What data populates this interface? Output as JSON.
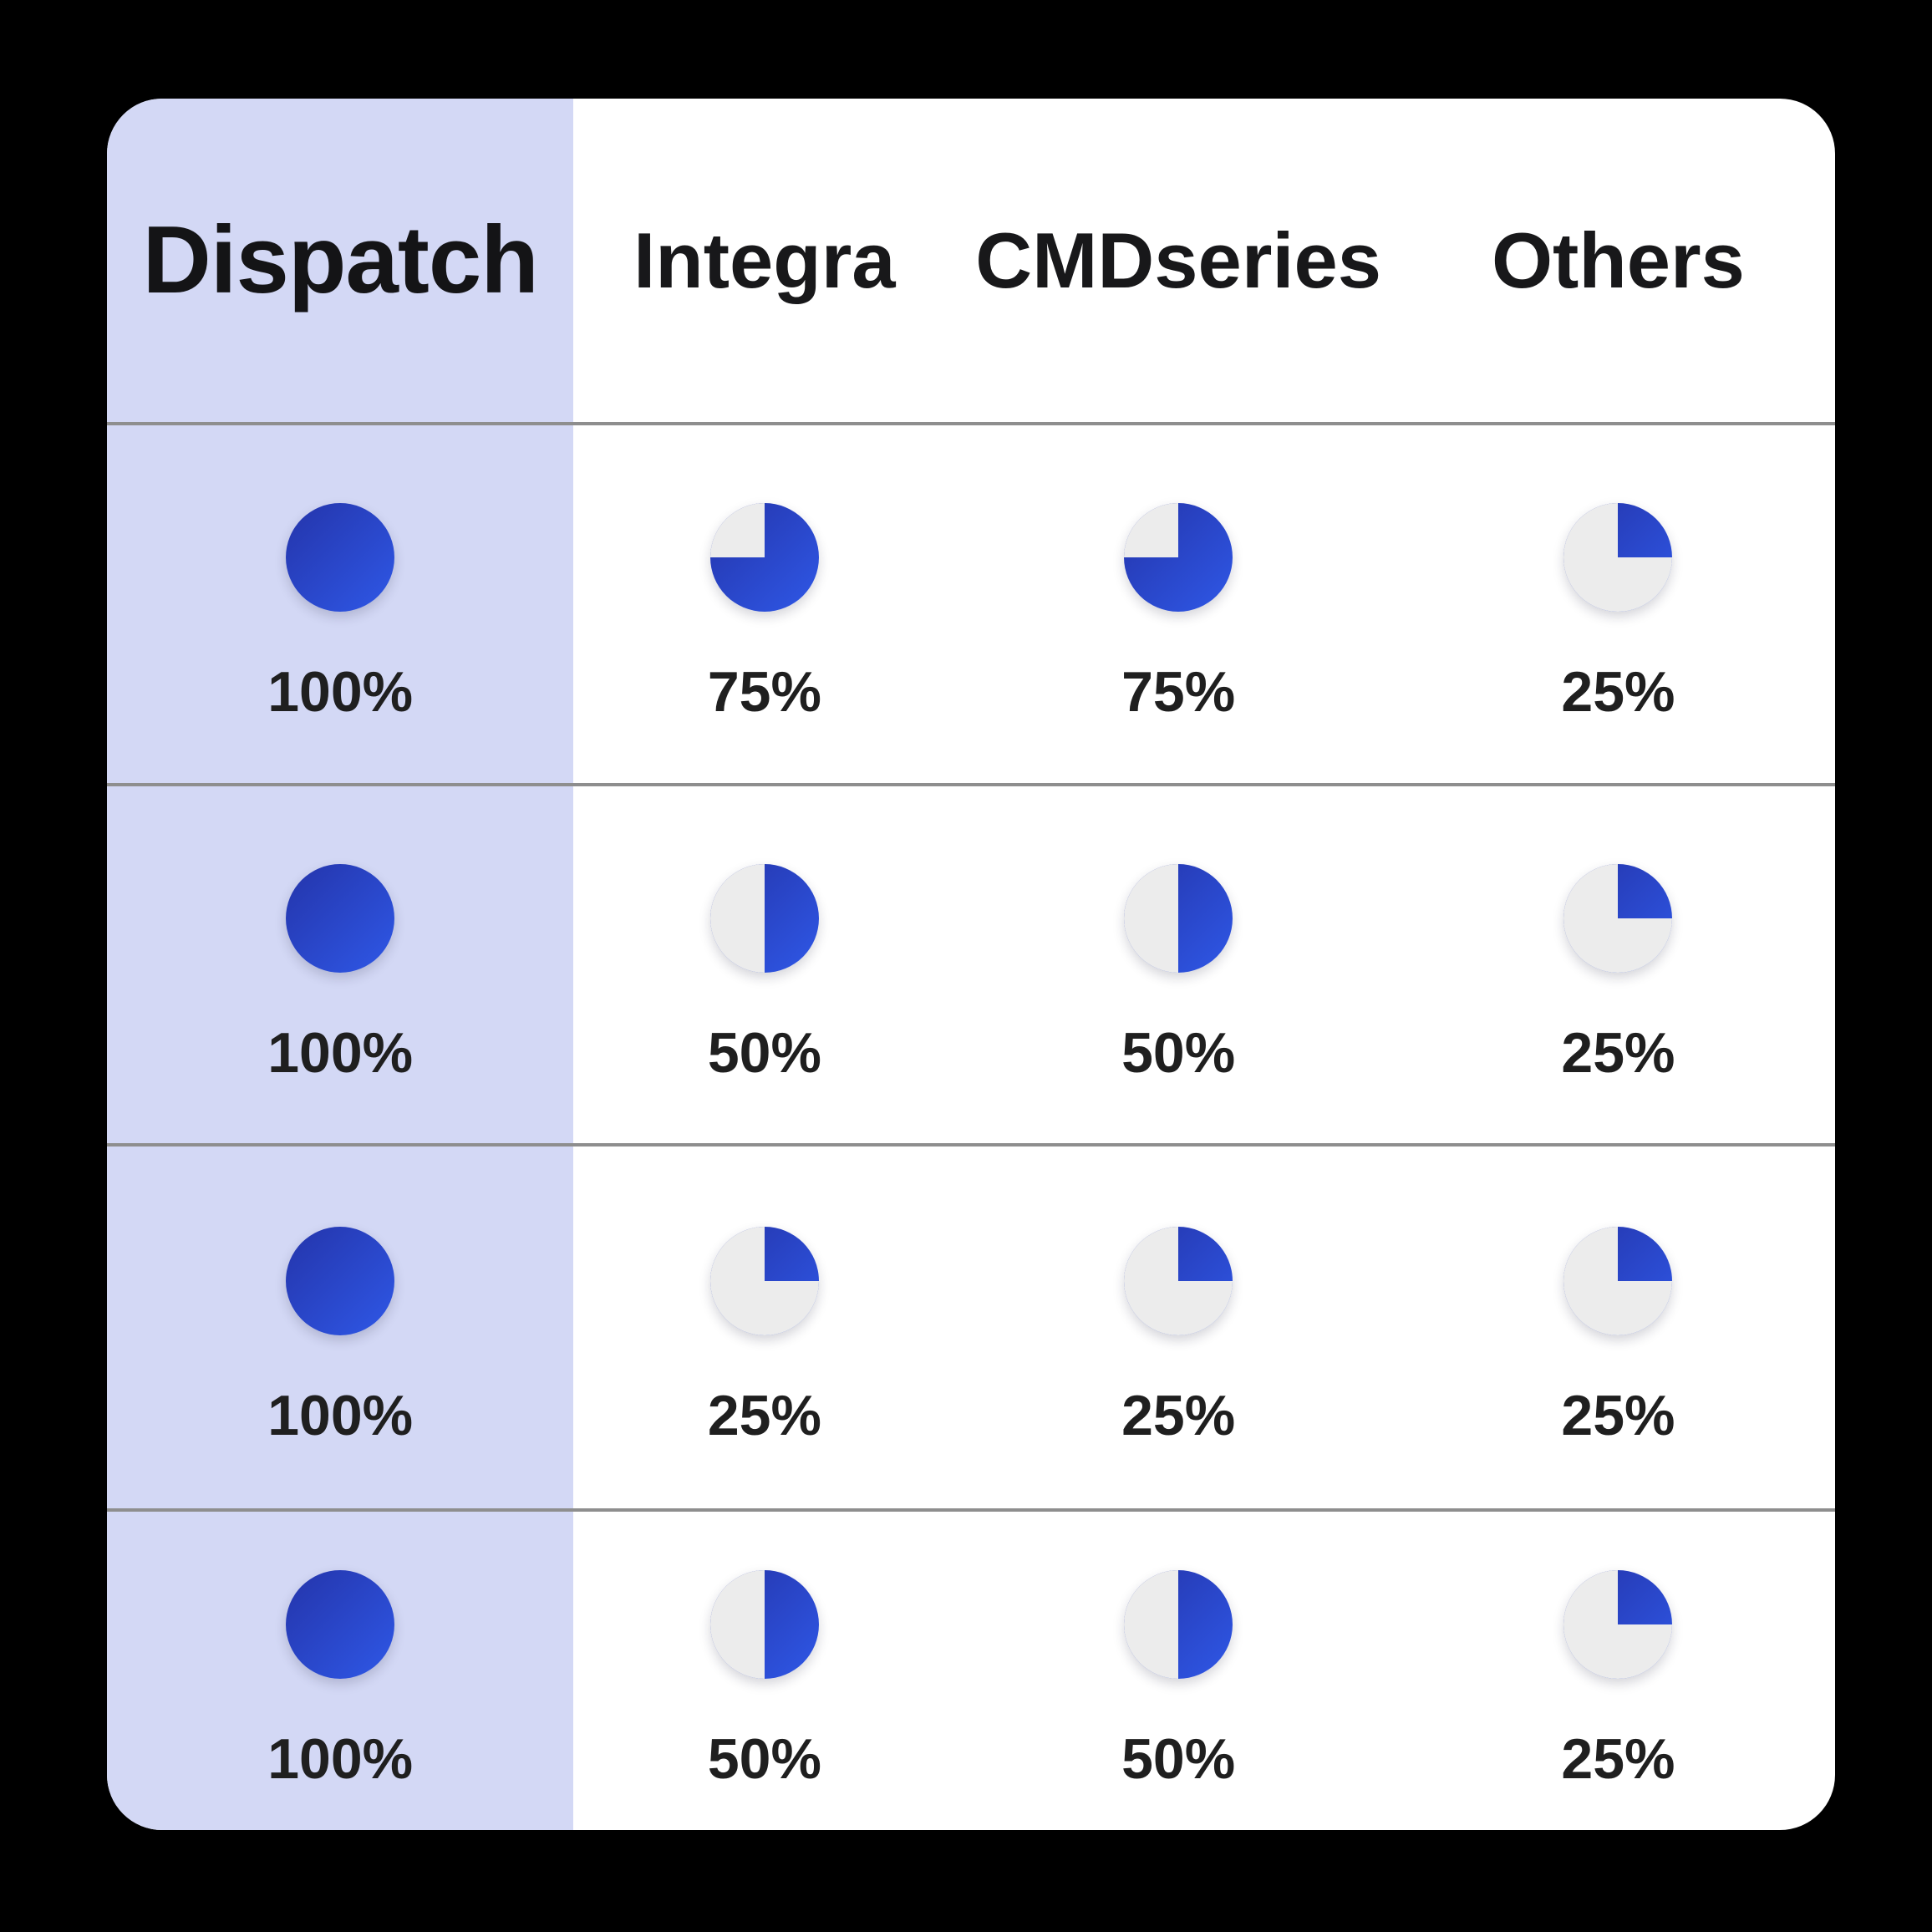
{
  "table": {
    "columns": [
      {
        "id": "dispatch",
        "label": "Dispatch",
        "highlighted": true
      },
      {
        "id": "integra",
        "label": "Integra",
        "highlighted": false
      },
      {
        "id": "cmdseries",
        "label": "CMDseries",
        "highlighted": false
      },
      {
        "id": "others",
        "label": "Others",
        "highlighted": false
      }
    ],
    "rows": [
      {
        "cells": [
          {
            "percent": 100,
            "label": "100%"
          },
          {
            "percent": 75,
            "label": "75%"
          },
          {
            "percent": 75,
            "label": "75%"
          },
          {
            "percent": 25,
            "label": "25%"
          }
        ]
      },
      {
        "cells": [
          {
            "percent": 100,
            "label": "100%"
          },
          {
            "percent": 50,
            "label": "50%"
          },
          {
            "percent": 50,
            "label": "50%"
          },
          {
            "percent": 25,
            "label": "25%"
          }
        ]
      },
      {
        "cells": [
          {
            "percent": 100,
            "label": "100%"
          },
          {
            "percent": 25,
            "label": "25%"
          },
          {
            "percent": 25,
            "label": "25%"
          },
          {
            "percent": 25,
            "label": "25%"
          }
        ]
      },
      {
        "cells": [
          {
            "percent": 100,
            "label": "100%"
          },
          {
            "percent": 50,
            "label": "50%"
          },
          {
            "percent": 50,
            "label": "50%"
          },
          {
            "percent": 25,
            "label": "25%"
          }
        ]
      }
    ]
  },
  "chart_data": {
    "type": "table",
    "glyph": "pie",
    "value_format": "percent",
    "columns": [
      "Dispatch",
      "Integra",
      "CMDseries",
      "Others"
    ],
    "rows": [
      [
        100,
        75,
        75,
        25
      ],
      [
        100,
        50,
        50,
        25
      ],
      [
        100,
        25,
        25,
        25
      ],
      [
        100,
        50,
        50,
        25
      ]
    ],
    "pie_fill_start": "12-oclock-clockwise",
    "legend_position": "none",
    "grid": "horizontal-dividers"
  },
  "colors": {
    "page_background": "#000000",
    "card_background": "#ffffff",
    "column_highlight": "#d3d8f5",
    "accent_dark": "#2434aa",
    "accent_light": "#2e55e2",
    "pie_remainder": "#ececec",
    "divider": "#8e8e8e",
    "text": "#1f1f1f"
  }
}
